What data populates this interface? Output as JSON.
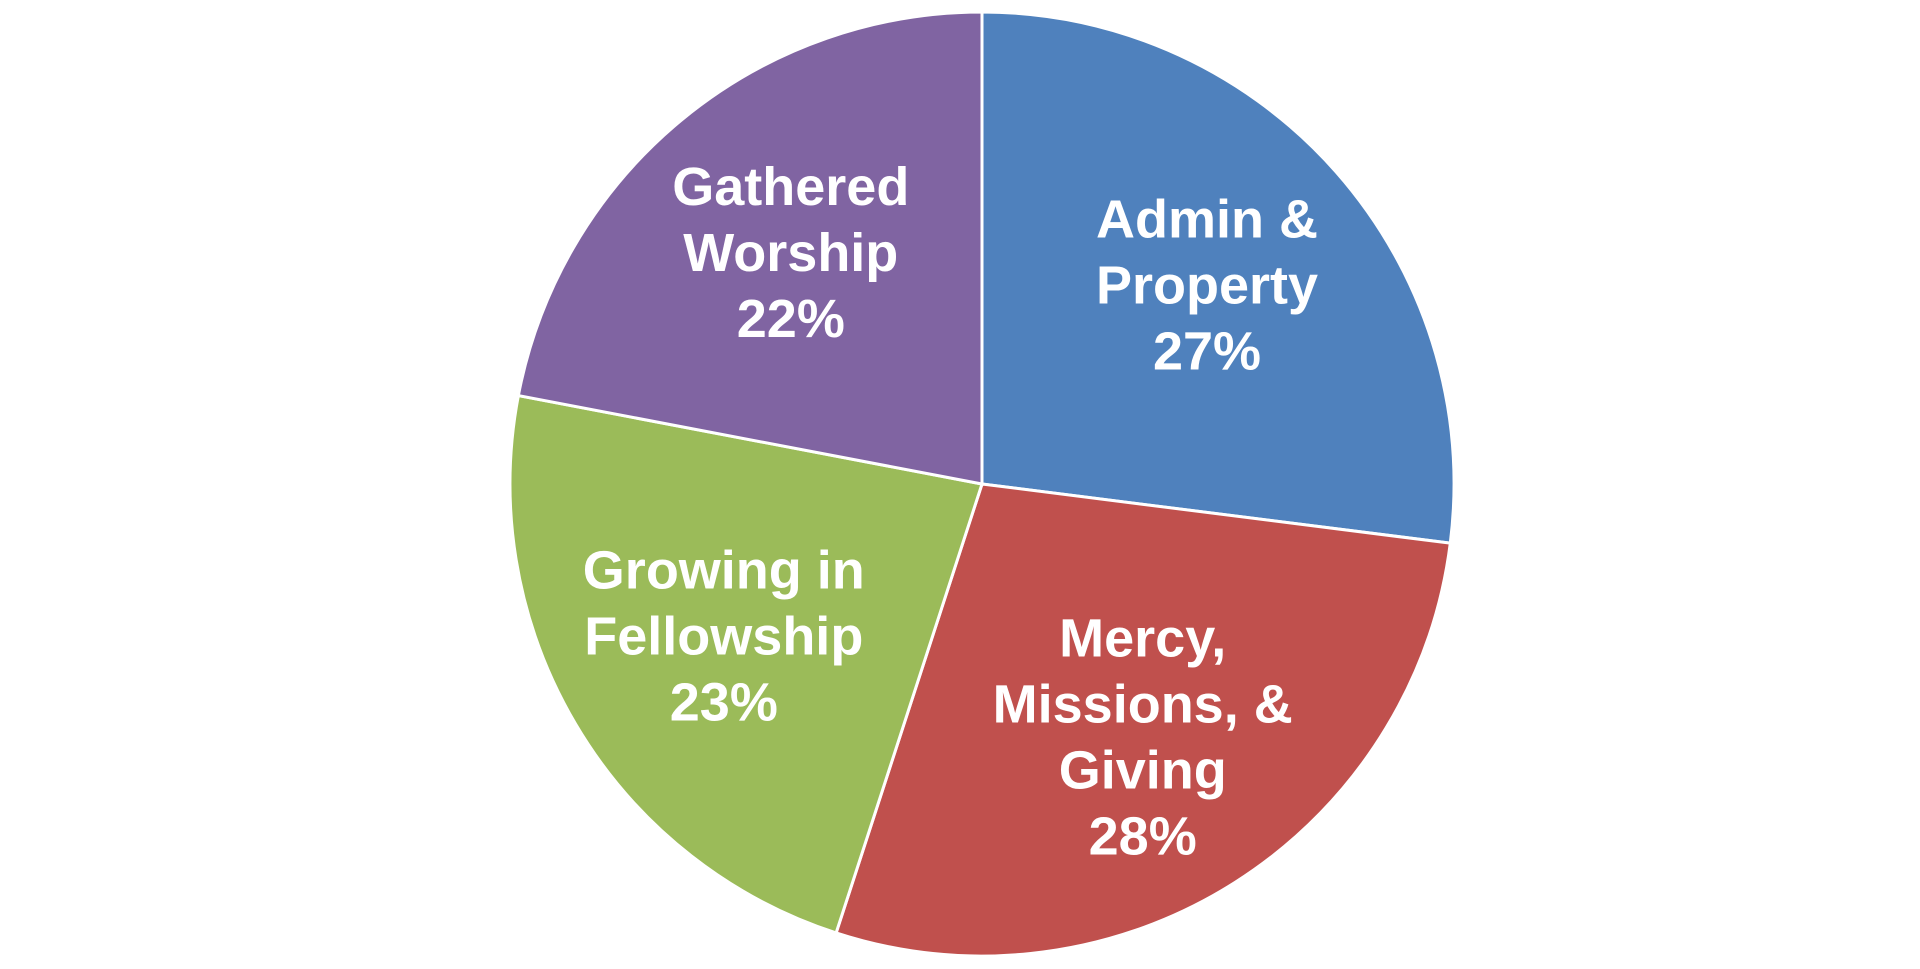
{
  "chart_data": {
    "type": "pie",
    "slices": [
      {
        "label_lines": [
          "Admin &",
          "Property"
        ],
        "value_label": "27%",
        "value": 27,
        "color": "#4F81BD"
      },
      {
        "label_lines": [
          "Mercy,",
          "Missions, &",
          "Giving"
        ],
        "value_label": "28%",
        "value": 28,
        "color": "#C0504D"
      },
      {
        "label_lines": [
          "Growing in",
          "Fellowship"
        ],
        "value_label": "23%",
        "value": 23,
        "color": "#9BBB59"
      },
      {
        "label_lines": [
          "Gathered",
          "Worship"
        ],
        "value_label": "22%",
        "value": 22,
        "color": "#8064A2"
      }
    ],
    "start": "12 o'clock",
    "direction": "clockwise",
    "legend": "none",
    "data_labels": "inside"
  }
}
